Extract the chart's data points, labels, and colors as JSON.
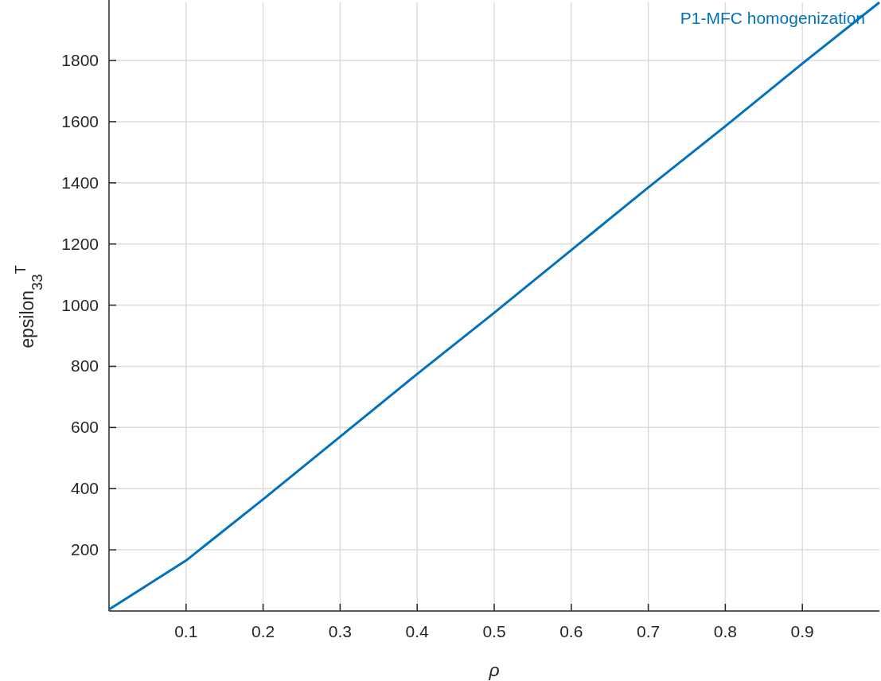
{
  "chart_data": {
    "type": "line",
    "xlabel": "ρ",
    "ylabel": "epsilon$_{33}$$^{T}$",
    "x": [
      0,
      0.1,
      0.2,
      0.3,
      0.4,
      0.5,
      0.6,
      0.7,
      0.8,
      0.9,
      1.0
    ],
    "series": [
      {
        "name": "P1-MFC homogenization",
        "color": "#0072bd",
        "values": [
          5,
          165,
          365,
          570,
          775,
          975,
          1180,
          1385,
          1585,
          1790,
          1990
        ]
      }
    ],
    "xlim": [
      0,
      1
    ],
    "ylim": [
      0,
      1990
    ],
    "xticks": [
      0.1,
      0.2,
      0.3,
      0.4,
      0.5,
      0.6,
      0.7,
      0.8,
      0.9
    ],
    "yticks": [
      200,
      400,
      600,
      800,
      1000,
      1200,
      1400,
      1600,
      1800
    ],
    "grid": true,
    "legend": "top right",
    "marker": "none",
    "line_style": "solid"
  }
}
